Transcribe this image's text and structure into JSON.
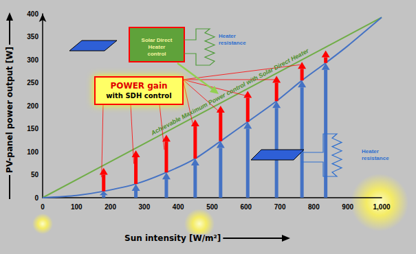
{
  "chart_data": {
    "type": "line",
    "xlabel": "Sun intensity [W/m²]",
    "ylabel": "PV-panel power output [W]",
    "xlim": [
      0,
      1000
    ],
    "ylim": [
      0,
      400
    ],
    "xticks": [
      0,
      100,
      200,
      300,
      400,
      500,
      600,
      700,
      800,
      900,
      1000
    ],
    "yticks": [
      0,
      50,
      100,
      150,
      200,
      250,
      300,
      350,
      400
    ],
    "grid": false,
    "series": [
      {
        "type": "line",
        "color": "#70ad47",
        "x": [
          0,
          1000
        ],
        "values": [
          0,
          392
        ]
      },
      {
        "type": "line",
        "color": "#4472c4",
        "x": [
          0,
          100,
          180,
          275,
          365,
          450,
          525,
          605,
          690,
          765,
          835,
          900,
          1000
        ],
        "values": [
          0,
          5,
          14,
          30,
          55,
          85,
          123,
          165,
          210,
          255,
          293,
          330,
          392
        ]
      },
      {
        "type": "arrow",
        "color": "#4472c4",
        "x": [
          180,
          275,
          365,
          450,
          525,
          605,
          690,
          765,
          835
        ],
        "from": [
          0,
          0,
          0,
          0,
          0,
          0,
          0,
          0,
          0
        ],
        "values": [
          14,
          30,
          55,
          85,
          123,
          165,
          210,
          255,
          293
        ]
      },
      {
        "type": "arrow",
        "color": "#ff0000",
        "x": [
          180,
          275,
          365,
          450,
          525,
          605,
          690,
          765,
          835
        ],
        "from": [
          14,
          30,
          55,
          85,
          123,
          165,
          210,
          255,
          293
        ],
        "values": [
          65,
          103,
          137,
          170,
          200,
          232,
          265,
          295,
          320
        ]
      }
    ],
    "annotations": {
      "gain_box": "POWER gain with SDH control",
      "max_line": "Achievable Maximum Power control with Solar Direct Heater",
      "controller": "Solar Direct Heater control",
      "heater_top": "Heater resistance",
      "heater_bottom": "Heater resistance"
    }
  }
}
